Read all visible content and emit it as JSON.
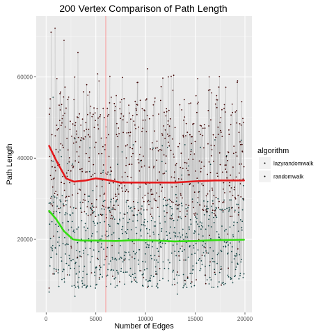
{
  "chart_data": {
    "type": "scatter",
    "title": "200  Vertex Comparison of Path Length",
    "xlabel": "Number of Edges",
    "ylabel": "Path Length",
    "xlim": [
      -1000,
      20700
    ],
    "ylim": [
      2000,
      75000
    ],
    "x_ticks": [
      0,
      5000,
      10000,
      15000,
      20000
    ],
    "y_ticks": [
      20000,
      40000,
      60000
    ],
    "x_tick_labels": [
      "0",
      "5000",
      "10000",
      "15000",
      "20000"
    ],
    "y_tick_labels": [
      "20000",
      "40000",
      "60000"
    ],
    "grid": true,
    "background": "#ebebeb",
    "legend": {
      "title": "algorithm",
      "position": "right",
      "entries": [
        "lazyrandomwalk",
        "randomwalk"
      ]
    },
    "vline": {
      "x": 6000,
      "color": "#ff8080"
    },
    "series": [
      {
        "name": "lazyrandomwalk",
        "point_color": "#3d0000",
        "line_color": "#bdbdbd",
        "smooth_color": "#e41a1c",
        "x_range": [
          300,
          19900
        ],
        "typical_range": [
          25000,
          55000
        ],
        "extremes": [
          [
            500,
            71000
          ],
          [
            900,
            72000
          ],
          [
            1800,
            69000
          ],
          [
            3200,
            66000
          ],
          [
            10200,
            62000
          ],
          [
            12300,
            60000
          ],
          [
            16400,
            60000
          ],
          [
            300,
            8000
          ]
        ],
        "smooth": [
          [
            300,
            43000
          ],
          [
            1000,
            39500
          ],
          [
            2000,
            35000
          ],
          [
            2800,
            34200
          ],
          [
            4000,
            34500
          ],
          [
            5000,
            35000
          ],
          [
            6000,
            34700
          ],
          [
            7500,
            34000
          ],
          [
            9000,
            34000
          ],
          [
            11000,
            34000
          ],
          [
            13000,
            34000
          ],
          [
            15000,
            34300
          ],
          [
            17000,
            34500
          ],
          [
            19900,
            34500
          ]
        ]
      },
      {
        "name": "randomwalk",
        "point_color": "#0d4040",
        "line_color": "#bdbdbd",
        "smooth_color": "#33dd11",
        "x_range": [
          300,
          19900
        ],
        "typical_range": [
          8000,
          30000
        ],
        "extremes": [
          [
            700,
            55000
          ],
          [
            1400,
            42000
          ],
          [
            300,
            7000
          ],
          [
            2900,
            6000
          ],
          [
            13200,
            6500
          ],
          [
            6500,
            9000
          ]
        ],
        "smooth": [
          [
            300,
            27000
          ],
          [
            1000,
            25000
          ],
          [
            1800,
            22000
          ],
          [
            2700,
            20000
          ],
          [
            3500,
            19700
          ],
          [
            5000,
            19700
          ],
          [
            7000,
            19600
          ],
          [
            9000,
            19800
          ],
          [
            11000,
            19700
          ],
          [
            13000,
            19500
          ],
          [
            15000,
            19600
          ],
          [
            17000,
            19800
          ],
          [
            19900,
            19900
          ]
        ]
      }
    ]
  }
}
